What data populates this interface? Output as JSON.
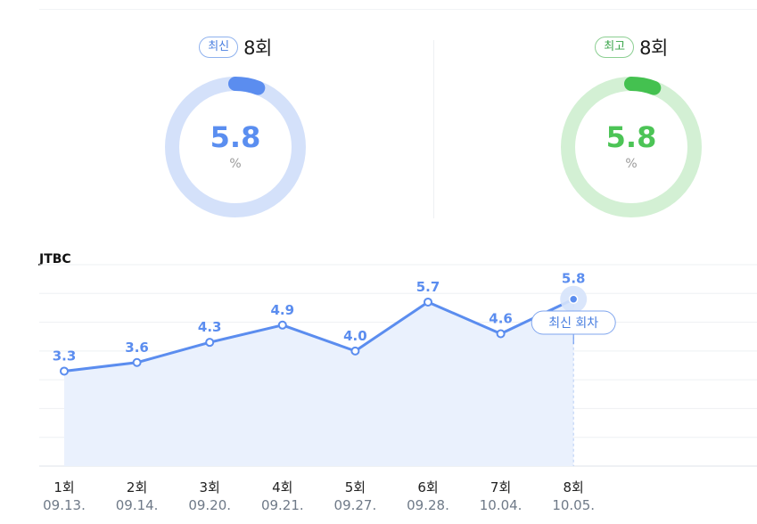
{
  "stats": {
    "latest": {
      "badge": "최신",
      "episode": "8회",
      "value": "5.8",
      "unit": "%",
      "fraction": 0.058,
      "color": "#5b8def"
    },
    "highest": {
      "badge": "최고",
      "episode": "8회",
      "value": "5.8",
      "unit": "%",
      "fraction": 0.058,
      "color": "#44c150"
    }
  },
  "network": "JTBC",
  "latest_marker": "최신 회차",
  "colors": {
    "accent_blue": "#5b8def",
    "accent_green": "#44c150",
    "ring_blue_track": "#d4e1fa",
    "ring_green_track": "#d3f0d4"
  },
  "chart_data": {
    "type": "line",
    "categories": [
      "1회",
      "2회",
      "3회",
      "4회",
      "5회",
      "6회",
      "7회",
      "8회"
    ],
    "dates": [
      "09.13.",
      "09.14.",
      "09.20.",
      "09.21.",
      "09.27.",
      "09.28.",
      "10.04.",
      "10.05."
    ],
    "series": [
      {
        "values": [
          3.3,
          3.6,
          4.3,
          4.9,
          4.0,
          5.7,
          4.6,
          5.8
        ]
      }
    ],
    "value_labels": [
      "3.3",
      "3.6",
      "4.3",
      "4.9",
      "4.0",
      "5.7",
      "4.6",
      "5.8"
    ],
    "ylim": [
      0,
      7
    ],
    "grid": true,
    "area_fill": true,
    "highlight_index": 7,
    "title": "",
    "xlabel": "",
    "ylabel": ""
  }
}
